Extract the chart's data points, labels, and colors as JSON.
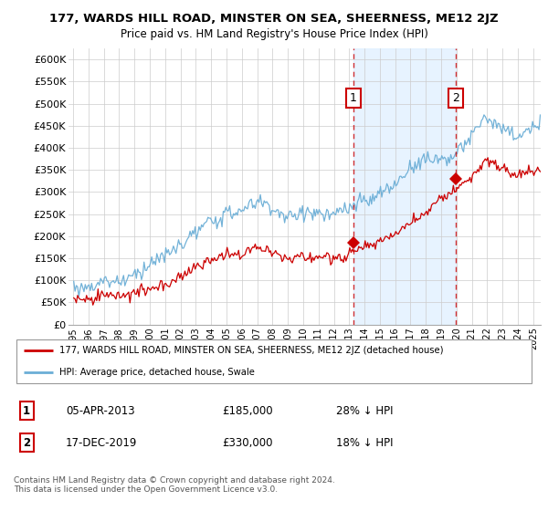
{
  "title": "177, WARDS HILL ROAD, MINSTER ON SEA, SHEERNESS, ME12 2JZ",
  "subtitle": "Price paid vs. HM Land Registry's House Price Index (HPI)",
  "ylabel_ticks": [
    0,
    50000,
    100000,
    150000,
    200000,
    250000,
    300000,
    350000,
    400000,
    450000,
    500000,
    550000,
    600000
  ],
  "ylabel_labels": [
    "£0",
    "£50K",
    "£100K",
    "£150K",
    "£200K",
    "£250K",
    "£300K",
    "£350K",
    "£400K",
    "£450K",
    "£500K",
    "£550K",
    "£600K"
  ],
  "ylim": [
    0,
    625000
  ],
  "xlim_start": 1994.7,
  "xlim_end": 2025.5,
  "hpi_color": "#6baed6",
  "price_color": "#cc0000",
  "highlight_color": "#ddeeff",
  "point1_x": 2013.27,
  "point1_y": 185000,
  "point2_x": 2019.96,
  "point2_y": 330000,
  "point1_label": "1",
  "point2_label": "2",
  "legend_line1": "177, WARDS HILL ROAD, MINSTER ON SEA, SHEERNESS, ME12 2JZ (detached house)",
  "legend_line2": "HPI: Average price, detached house, Swale",
  "note1_num": "1",
  "note1_date": "05-APR-2013",
  "note1_price": "£185,000",
  "note1_hpi": "28% ↓ HPI",
  "note2_num": "2",
  "note2_date": "17-DEC-2019",
  "note2_price": "£330,000",
  "note2_hpi": "18% ↓ HPI",
  "footer": "Contains HM Land Registry data © Crown copyright and database right 2024.\nThis data is licensed under the Open Government Licence v3.0.",
  "background_color": "#ffffff"
}
